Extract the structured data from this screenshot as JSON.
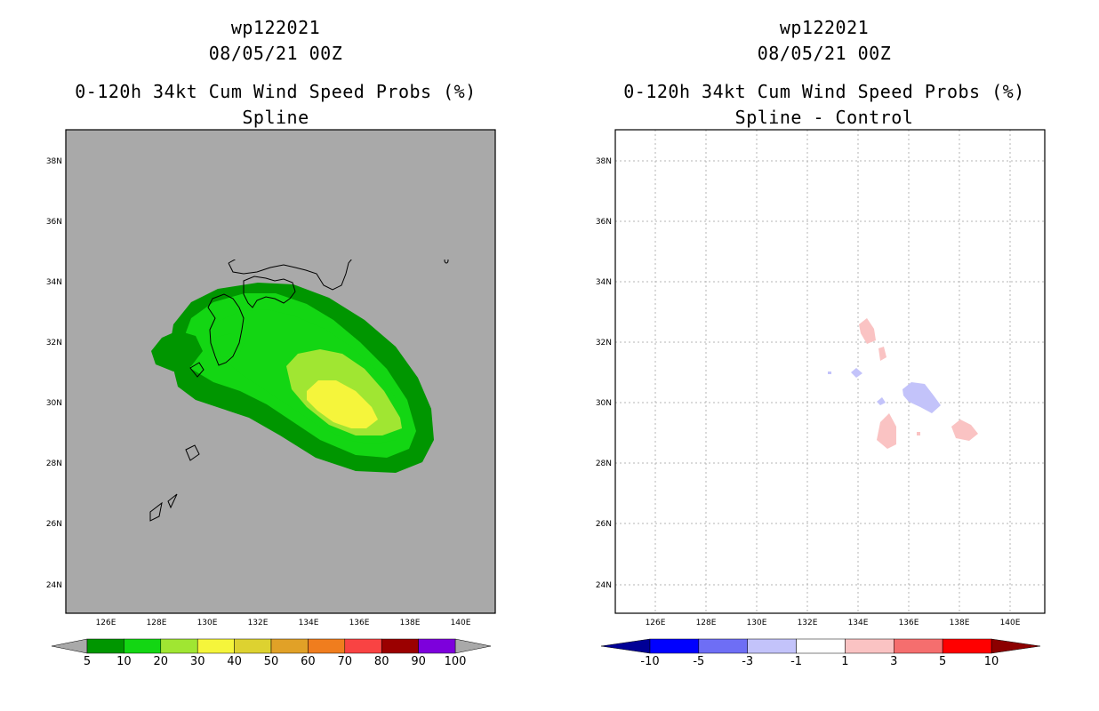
{
  "left_panel": {
    "title_lines": [
      "wp122021",
      "08/05/21 00Z",
      "0-120h 34kt Cum Wind Speed Probs (%)",
      "Spline"
    ],
    "background_color": "#a9a9a9",
    "colorbar": {
      "labels": [
        "5",
        "10",
        "20",
        "30",
        "40",
        "50",
        "60",
        "70",
        "80",
        "90",
        "100"
      ],
      "colors": [
        "#009600",
        "#13d613",
        "#a0e632",
        "#f5f53b",
        "#ddd230",
        "#e1a127",
        "#f07d1e",
        "#f94343",
        "#9b0000",
        "#7d00dc"
      ],
      "under_color": "#a9a9a9",
      "over_color": "#a9a9a9"
    }
  },
  "right_panel": {
    "title_lines": [
      "wp122021",
      "08/05/21 00Z",
      "0-120h 34kt Cum Wind Speed Probs (%)",
      "Spline - Control"
    ],
    "background_color": "#ffffff",
    "colorbar": {
      "labels": [
        "-10",
        "-5",
        "-3",
        "-1",
        "1",
        "3",
        "5",
        "10"
      ],
      "colors": [
        "#0000ff",
        "#6e6ef5",
        "#c3c3fa",
        "#ffffff",
        "#fac3c3",
        "#f56e6e",
        "#ff0000"
      ],
      "under_color": "#000096",
      "over_color": "#8c0000"
    }
  },
  "chart_data": [
    {
      "type": "contour-map",
      "title": "0-120h 34kt Cum Wind Speed Probs (%)",
      "subtitle": "Spline",
      "storm": "wp122021",
      "init_time": "08/05/21 00Z",
      "x_ticks": [
        "126E",
        "128E",
        "130E",
        "132E",
        "134E",
        "136E",
        "138E",
        "140E"
      ],
      "y_ticks": [
        "24N",
        "26N",
        "28N",
        "30N",
        "32N",
        "34N",
        "36N",
        "38N"
      ],
      "lon_range": [
        124.5,
        141.5
      ],
      "lat_range": [
        23,
        39
      ],
      "contour_levels": [
        5,
        10,
        20,
        30,
        40,
        50,
        60,
        70,
        80,
        90,
        100
      ],
      "max_probability_band": "30-40",
      "max_location": [
        135.9,
        30.0
      ]
    },
    {
      "type": "contour-map",
      "title": "0-120h 34kt Cum Wind Speed Probs (%)",
      "subtitle": "Spline - Control",
      "storm": "wp122021",
      "init_time": "08/05/21 00Z",
      "x_ticks": [
        "126E",
        "128E",
        "130E",
        "132E",
        "134E",
        "136E",
        "138E",
        "140E"
      ],
      "y_ticks": [
        "24N",
        "26N",
        "28N",
        "30N",
        "32N",
        "34N",
        "36N",
        "38N"
      ],
      "lon_range": [
        124.5,
        141.5
      ],
      "lat_range": [
        23,
        39
      ],
      "contour_levels": [
        -10,
        -5,
        -3,
        -1,
        1,
        3,
        5,
        10
      ],
      "grid": true,
      "anomalies": [
        {
          "sign": "positive",
          "band": "1-3",
          "center": [
            134.6,
            32.3
          ]
        },
        {
          "sign": "positive",
          "band": "1-3",
          "center": [
            135.2,
            31.6
          ]
        },
        {
          "sign": "negative",
          "band": "-3--1",
          "center": [
            134.0,
            30.9
          ]
        },
        {
          "sign": "negative",
          "band": "-3--1",
          "center": [
            136.8,
            30.2
          ]
        },
        {
          "sign": "negative",
          "band": "-3--1",
          "center": [
            135.1,
            30.0
          ]
        },
        {
          "sign": "positive",
          "band": "1-3",
          "center": [
            135.6,
            28.9
          ]
        },
        {
          "sign": "positive",
          "band": "1-3",
          "center": [
            138.2,
            29.0
          ]
        }
      ]
    }
  ]
}
